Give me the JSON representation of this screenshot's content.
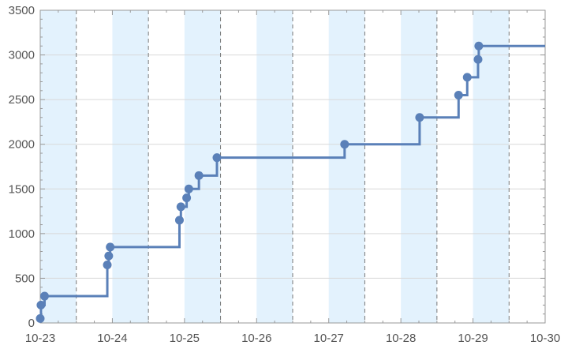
{
  "chart_data": {
    "type": "line",
    "line_shape": "step-after",
    "title": "",
    "xlabel": "",
    "ylabel": "",
    "x_ticks": [
      "10-23",
      "10-24",
      "10-25",
      "10-26",
      "10-27",
      "10-28",
      "10-29",
      "10-30"
    ],
    "y_ticks": [
      "0",
      "500",
      "1000",
      "1500",
      "2000",
      "2500",
      "3000",
      "3500"
    ],
    "xlim": [
      0,
      7
    ],
    "ylim": [
      0,
      3500
    ],
    "grid": true,
    "legend": "none",
    "shaded_bands": [
      [
        0.0,
        0.5
      ],
      [
        1.0,
        1.5
      ],
      [
        2.0,
        2.5
      ],
      [
        3.0,
        3.5
      ],
      [
        4.0,
        4.5
      ],
      [
        5.0,
        5.5
      ],
      [
        6.0,
        6.5
      ]
    ],
    "dashed_lines_x": [
      0.5,
      1.5,
      2.5,
      3.5,
      4.5,
      5.5,
      6.5
    ],
    "series": [
      {
        "points": [
          {
            "x": 0.0,
            "y": 50
          },
          {
            "x": 0.01,
            "y": 200
          },
          {
            "x": 0.06,
            "y": 300
          },
          {
            "x": 0.93,
            "y": 650
          },
          {
            "x": 0.95,
            "y": 750
          },
          {
            "x": 0.97,
            "y": 850
          },
          {
            "x": 1.93,
            "y": 1150
          },
          {
            "x": 1.95,
            "y": 1300
          },
          {
            "x": 2.03,
            "y": 1400
          },
          {
            "x": 2.06,
            "y": 1500
          },
          {
            "x": 2.2,
            "y": 1650
          },
          {
            "x": 2.45,
            "y": 1850
          },
          {
            "x": 4.22,
            "y": 2000
          },
          {
            "x": 5.26,
            "y": 2300
          },
          {
            "x": 5.8,
            "y": 2550
          },
          {
            "x": 5.92,
            "y": 2750
          },
          {
            "x": 6.07,
            "y": 2950
          },
          {
            "x": 6.08,
            "y": 3100
          }
        ],
        "line_end_x": 7.0
      }
    ],
    "colors": {
      "line": "#5a80b8",
      "marker": "#5a80b8",
      "band": "#e3f2fd",
      "grid": "#d9d9d9",
      "dashed": "#777777",
      "axis": "#999999",
      "label": "#555555"
    }
  }
}
